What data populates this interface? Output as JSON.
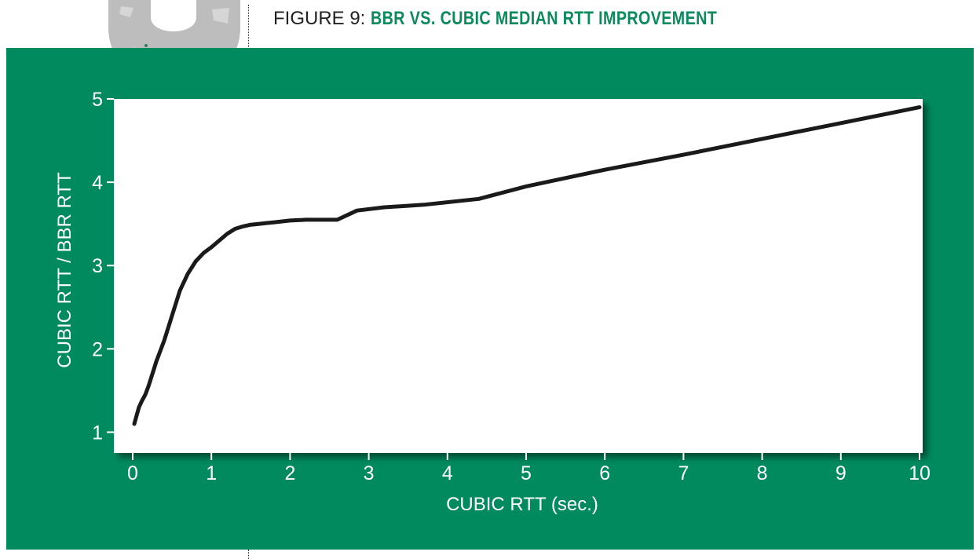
{
  "figure": {
    "prefix": "FIGURE 9: ",
    "title": "BBR VS. CUBIC MEDIAN RTT IMPROVEMENT"
  },
  "colors": {
    "panel": "#008a5e",
    "title_accent": "#0b8a5b",
    "plot_bg": "#ffffff",
    "line": "#1a1a1a",
    "axis_text": "#ffffff"
  },
  "chart_data": {
    "type": "line",
    "xlabel": "CUBIC RTT (sec.)",
    "ylabel": "CUBIC RTT / BBR RTT",
    "xlim": [
      0,
      10
    ],
    "ylim": [
      0.75,
      5
    ],
    "xticks": [
      0,
      1,
      2,
      3,
      4,
      5,
      6,
      7,
      8,
      9,
      10
    ],
    "yticks": [
      1,
      2,
      3,
      4,
      5
    ],
    "grid": false,
    "series": [
      {
        "x": [
          0.02,
          0.05,
          0.08,
          0.12,
          0.16,
          0.2,
          0.25,
          0.3,
          0.4,
          0.5,
          0.6,
          0.7,
          0.8,
          0.9,
          1.0,
          1.1,
          1.2,
          1.3,
          1.4,
          1.5,
          1.6,
          1.7,
          1.8,
          1.9,
          2.0,
          2.2,
          2.4,
          2.6,
          2.85,
          3.2,
          3.7,
          4.4,
          5.0,
          6.0,
          7.0,
          8.0,
          9.0,
          10.0
        ],
        "y": [
          1.1,
          1.2,
          1.3,
          1.38,
          1.45,
          1.55,
          1.7,
          1.85,
          2.1,
          2.4,
          2.7,
          2.9,
          3.05,
          3.15,
          3.22,
          3.3,
          3.38,
          3.44,
          3.47,
          3.49,
          3.5,
          3.51,
          3.52,
          3.53,
          3.54,
          3.55,
          3.55,
          3.55,
          3.66,
          3.7,
          3.73,
          3.8,
          3.95,
          4.15,
          4.33,
          4.52,
          4.71,
          4.9
        ]
      }
    ]
  }
}
